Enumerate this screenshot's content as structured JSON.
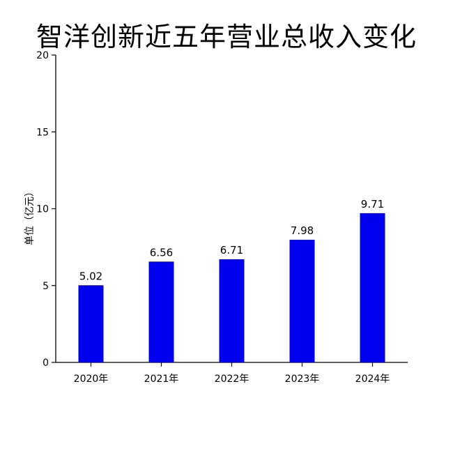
{
  "chart_data": {
    "type": "bar",
    "title": "智洋创新近五年营业总收入变化",
    "xlabel": "",
    "ylabel": "单位（亿元）",
    "categories": [
      "2020年",
      "2021年",
      "2022年",
      "2023年",
      "2024年"
    ],
    "values": [
      5.02,
      6.56,
      6.71,
      7.98,
      9.71
    ],
    "value_labels": [
      "5.02",
      "6.56",
      "6.71",
      "7.98",
      "9.71"
    ],
    "ylim": [
      0,
      20
    ],
    "yticks": [
      0,
      5,
      10,
      15,
      20
    ],
    "grid": false,
    "legend": "none",
    "bar_color": "#0000ee"
  }
}
